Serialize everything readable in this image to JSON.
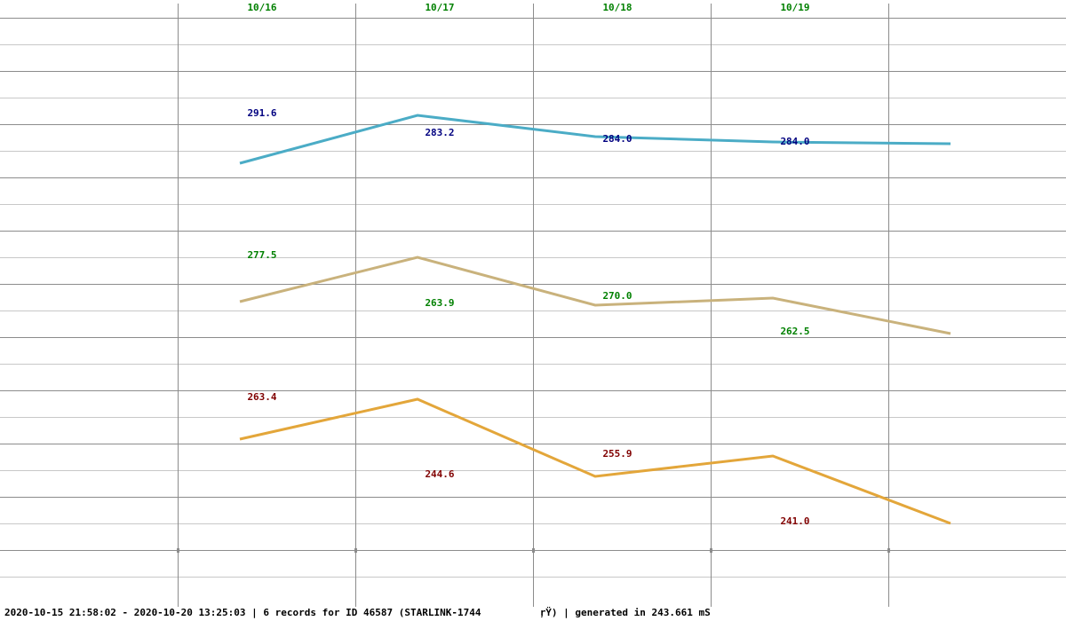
{
  "chart_data": {
    "type": "line",
    "categories": [
      "10/16",
      "10/17",
      "10/18",
      "10/19"
    ],
    "ylim": [
      0,
      700
    ],
    "grid": true,
    "series": [
      {
        "color": "#4bacc6",
        "label_color": "#000080",
        "x": [
          0.35,
          1.35,
          2.35,
          3.35,
          4.35
        ],
        "y": [
          516,
          570,
          546,
          540,
          538
        ],
        "labels": [
          {
            "text": "291.6",
            "x": 0.39,
            "y": 573
          },
          {
            "text": "283.2",
            "x": 1.39,
            "y": 551
          },
          {
            "text": "284.0",
            "x": 2.39,
            "y": 544
          },
          {
            "text": "284.0",
            "x": 3.39,
            "y": 541
          }
        ]
      },
      {
        "color": "#c9b27c",
        "label_color": "#008000",
        "x": [
          0.35,
          1.35,
          2.35,
          3.35,
          4.35
        ],
        "y": [
          360,
          410,
          356,
          364,
          324
        ],
        "labels": [
          {
            "text": "277.5",
            "x": 0.39,
            "y": 413
          },
          {
            "text": "263.9",
            "x": 1.39,
            "y": 359
          },
          {
            "text": "270.0",
            "x": 2.39,
            "y": 367
          },
          {
            "text": "262.5",
            "x": 3.39,
            "y": 327
          }
        ]
      },
      {
        "color": "#e3a63a",
        "label_color": "#800000",
        "x": [
          0.35,
          1.35,
          2.35,
          3.35,
          4.35
        ],
        "y": [
          205,
          250,
          163,
          186,
          110
        ],
        "labels": [
          {
            "text": "263.4",
            "x": 0.39,
            "y": 253
          },
          {
            "text": "244.6",
            "x": 1.39,
            "y": 166
          },
          {
            "text": "255.9",
            "x": 2.39,
            "y": 189
          },
          {
            "text": "241.0",
            "x": 3.39,
            "y": 113
          }
        ]
      }
    ]
  },
  "footer": {
    "range": "2020-10-15 21:58:02 - 2020-10-20 13:25:03",
    "records": "6 records for ID 46587 (STARLINK-1744",
    "generated": "ŗŸ) | generated in 243.661 mS"
  }
}
